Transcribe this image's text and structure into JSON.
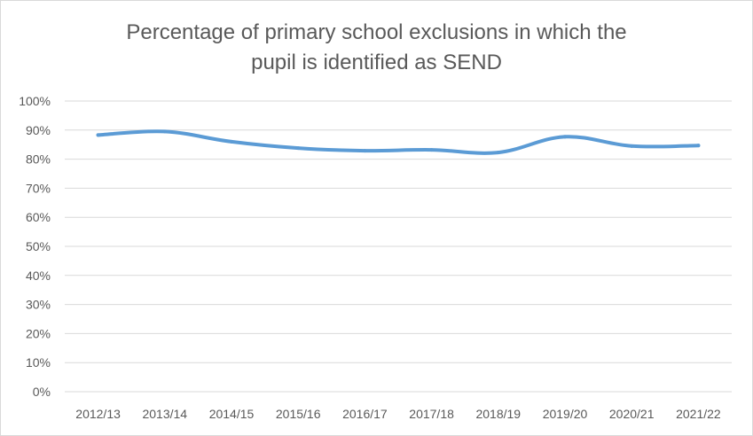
{
  "chart_data": {
    "type": "line",
    "title": "Percentage of primary school exclusions in which the\npupil is identified as SEND",
    "xlabel": "",
    "ylabel": "",
    "categories": [
      "2012/13",
      "2013/14",
      "2014/15",
      "2015/16",
      "2016/17",
      "2017/18",
      "2018/19",
      "2019/20",
      "2020/21",
      "2021/22"
    ],
    "series": [
      {
        "values": [
          88.3,
          89.5,
          86.0,
          83.8,
          82.9,
          83.2,
          82.3,
          87.7,
          84.5,
          84.7
        ],
        "color": "#5b9bd5"
      }
    ],
    "ylim": [
      0,
      100
    ],
    "yticks": [
      0,
      10,
      20,
      30,
      40,
      50,
      60,
      70,
      80,
      90,
      100
    ],
    "ytick_labels": [
      "0%",
      "10%",
      "20%",
      "30%",
      "40%",
      "50%",
      "60%",
      "70%",
      "80%",
      "90%",
      "100%"
    ],
    "grid": true,
    "legend": "none",
    "colors": {
      "gridline": "#d9d9d9",
      "text": "#595959",
      "line": "#5b9bd5"
    }
  }
}
